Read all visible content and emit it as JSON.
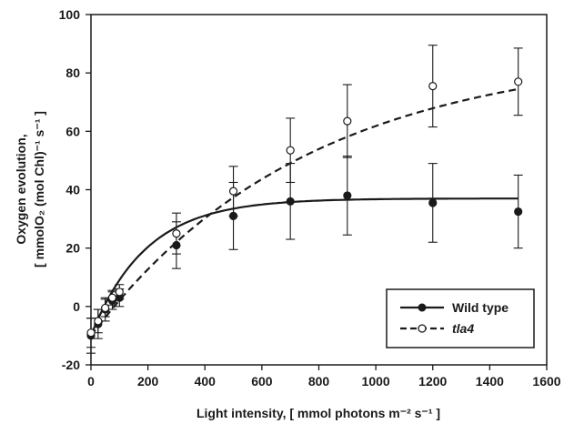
{
  "chart_data": {
    "type": "scatter",
    "xlabel": "Light intensity, [ mmol photons m⁻² s⁻¹ ]",
    "ylabel_line1": "Oxygen evolution,",
    "ylabel_line2": "[ mmolO₂ (mol Chl)⁻¹ s⁻¹ ]",
    "xlim": [
      0,
      1600
    ],
    "ylim": [
      -20,
      100
    ],
    "x_ticks": [
      0,
      200,
      400,
      600,
      800,
      1000,
      1200,
      1400,
      1600
    ],
    "y_ticks": [
      -20,
      0,
      20,
      40,
      60,
      80,
      100
    ],
    "x_tick_labels": [
      "0",
      "200",
      "400",
      "600",
      "800",
      "1000",
      "1200",
      "1400",
      "1600"
    ],
    "y_tick_labels": [
      "-20",
      "0",
      "20",
      "40",
      "60",
      "80",
      "100"
    ],
    "grid": false,
    "legend_position": "bottom-right",
    "series": [
      {
        "name": "Wild type",
        "marker": "filled-circle",
        "line": "solid",
        "x": [
          0,
          25,
          50,
          75,
          100,
          300,
          500,
          700,
          900,
          1200,
          1500
        ],
        "y": [
          -10,
          -6,
          -1,
          2,
          3,
          21,
          31,
          36,
          38,
          35.5,
          32.5
        ],
        "err": [
          6,
          5,
          4,
          3,
          3,
          8,
          11.5,
          13,
          13.5,
          13.5,
          12.5
        ],
        "fit_pmax": 37,
        "fit_k": 0.0052,
        "fit_offset": -10
      },
      {
        "name": "tla4",
        "marker": "open-circle",
        "line": "dashed",
        "x": [
          0,
          25,
          50,
          75,
          100,
          300,
          500,
          700,
          900,
          1200,
          1500
        ],
        "y": [
          -9,
          -5,
          -0.5,
          3,
          5,
          25,
          39.5,
          53.5,
          63.5,
          75.5,
          77
        ],
        "err": [
          5,
          4,
          3,
          2.5,
          2.5,
          7,
          8.5,
          11,
          12.5,
          14,
          11.5
        ],
        "fit_pmax": 88,
        "fit_k": 0.00132,
        "fit_offset": -10
      }
    ]
  },
  "colors": {
    "ink": "#1a1a1a",
    "background": "#ffffff"
  }
}
